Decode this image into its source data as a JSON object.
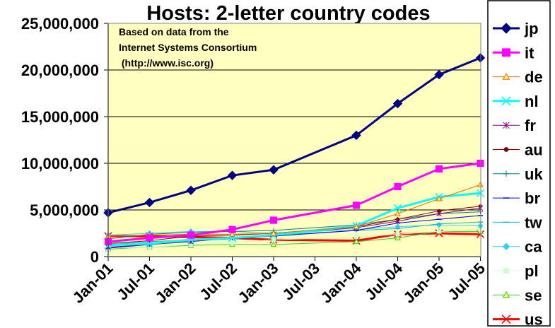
{
  "chart_data": {
    "type": "line",
    "title": "Hosts: 2-letter country codes",
    "annotation": [
      "Based on data from the",
      "Internet Systems Consortium",
      " (http://www.isc.org)"
    ],
    "xlabel": "",
    "ylabel": "",
    "x_ticks": [
      "Jan-01",
      "Jul-01",
      "Jan-02",
      "Jul-02",
      "Jan-03",
      "Jul-03",
      "Jan-04",
      "Jul-04",
      "Jan-05",
      "Jul-05"
    ],
    "y_ticks": [
      "0",
      "5,000,000",
      "10,000,000",
      "15,000,000",
      "20,000,000",
      "25,000,000"
    ],
    "ylim": [
      0,
      25000000
    ],
    "x_dates": [
      "2001-01",
      "2001-07",
      "2002-01",
      "2002-07",
      "2003-01",
      "2004-01",
      "2004-07",
      "2005-01",
      "2005-07"
    ],
    "grid": true,
    "legend_position": "right",
    "plot_background": "#ffffc0",
    "series": [
      {
        "name": "jp",
        "color": "#000080",
        "marker": "diamond",
        "values": [
          4700000,
          5800000,
          7100000,
          8700000,
          9300000,
          13000000,
          16400000,
          19500000,
          21300000
        ]
      },
      {
        "name": "it",
        "color": "#ff00ff",
        "marker": "square",
        "values": [
          1600000,
          2000000,
          2300000,
          2900000,
          3900000,
          5500000,
          7500000,
          9400000,
          10000000
        ]
      },
      {
        "name": "de",
        "color": "#ff6600",
        "marker": "triangle",
        "values": [
          2200000,
          2300000,
          2400000,
          2400000,
          2500000,
          3200000,
          4600000,
          6200000,
          7700000
        ]
      },
      {
        "name": "nl",
        "color": "#00ffff",
        "marker": "x",
        "values": [
          1200000,
          1400000,
          1800000,
          2000000,
          2300000,
          3300000,
          5200000,
          6400000,
          6800000
        ]
      },
      {
        "name": "fr",
        "color": "#800080",
        "marker": "star",
        "values": [
          1000000,
          1300000,
          1600000,
          2000000,
          2400000,
          3100000,
          3800000,
          4600000,
          5200000
        ]
      },
      {
        "name": "au",
        "color": "#800000",
        "marker": "circle",
        "values": [
          1400000,
          1700000,
          2200000,
          2300000,
          2500000,
          3200000,
          4000000,
          4900000,
          5400000
        ]
      },
      {
        "name": "uk",
        "color": "#008080",
        "marker": "plus",
        "values": [
          1900000,
          2400000,
          2600000,
          2700000,
          2800000,
          3400000,
          4000000,
          4600000,
          4800000
        ]
      },
      {
        "name": "br",
        "color": "#0000ff",
        "marker": "dash",
        "values": [
          900000,
          1300000,
          1700000,
          1900000,
          2200000,
          2800000,
          3600000,
          4000000,
          4400000
        ]
      },
      {
        "name": "tw",
        "color": "#00c0c0",
        "marker": "dash",
        "values": [
          1300000,
          1600000,
          1800000,
          2000000,
          2300000,
          2800000,
          3000000,
          3500000,
          3700000
        ]
      },
      {
        "name": "ca",
        "color": "#33ccff",
        "marker": "diamond",
        "values": [
          2300000,
          2500000,
          2700000,
          2700000,
          2500000,
          2900000,
          3200000,
          3400000,
          3300000
        ]
      },
      {
        "name": "pl",
        "color": "#ccffcc",
        "marker": "square",
        "values": [
          700000,
          1000000,
          1300000,
          1500000,
          1800000,
          2100000,
          2400000,
          2700000,
          2900000
        ]
      },
      {
        "name": "se",
        "color": "#33cc33",
        "marker": "triangle",
        "values": [
          800000,
          1000000,
          1200000,
          1300000,
          1300000,
          1600000,
          2000000,
          2700000,
          2700000
        ]
      },
      {
        "name": "us",
        "color": "#ff0000",
        "marker": "x",
        "values": [
          2200000,
          2200000,
          2100000,
          2000000,
          1800000,
          1700000,
          2400000,
          2500000,
          2400000
        ]
      }
    ]
  }
}
